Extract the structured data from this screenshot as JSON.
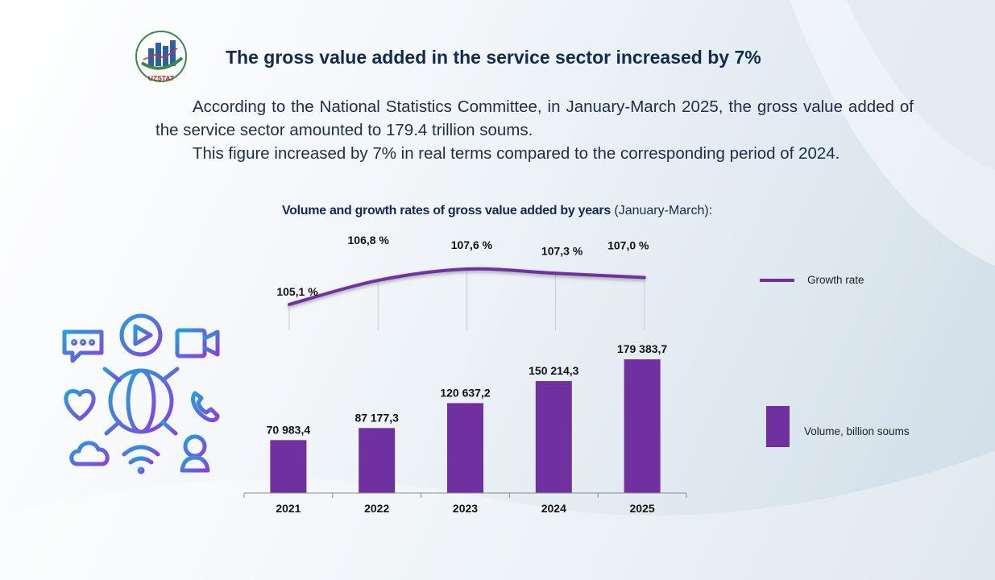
{
  "logo": {
    "text": "UZSTAT"
  },
  "title": "The gross value added in the service sector increased by 7%",
  "intro": {
    "paragraph1": "According to the National Statistics Committee, in January-March 2025, the gross value added of the service sector amounted to 179.4 trillion soums.",
    "paragraph2": "This figure increased by 7% in real terms compared to the corresponding period of 2024."
  },
  "chart_title": {
    "bold": "Volume and growth rates of gross value added by years",
    "normal": " (January-March):"
  },
  "icons": [
    "chat-bubble-icon",
    "play-icon",
    "video-camera-icon",
    "globe-icon",
    "heart-icon",
    "phone-icon",
    "cloud-icon",
    "wifi-icon",
    "person-icon"
  ],
  "colors": {
    "bar": "#7030a0",
    "line": "#7030a0",
    "title": "#102a55"
  },
  "chart_data": {
    "type": "bar+line",
    "categories": [
      "2021",
      "2022",
      "2023",
      "2024",
      "2025"
    ],
    "series": [
      {
        "name": "Volume, billion soums",
        "type": "bar",
        "values": [
          70983.4,
          87177.3,
          120637.2,
          150214.3,
          179383.7
        ],
        "labels": [
          "70 983,4",
          "87 177,3",
          "120 637,2",
          "150 214,3",
          "179 383,7"
        ]
      },
      {
        "name": "Growth rate",
        "type": "line",
        "values": [
          105.1,
          106.8,
          107.6,
          107.3,
          107.0
        ],
        "labels": [
          "105,1 %",
          "106,8 %",
          "107,6 %",
          "107,3 %",
          "107,0 %"
        ]
      }
    ],
    "legend": {
      "line": "Growth rate",
      "bar": "Volume, billion soums"
    },
    "legend_position": "right"
  }
}
